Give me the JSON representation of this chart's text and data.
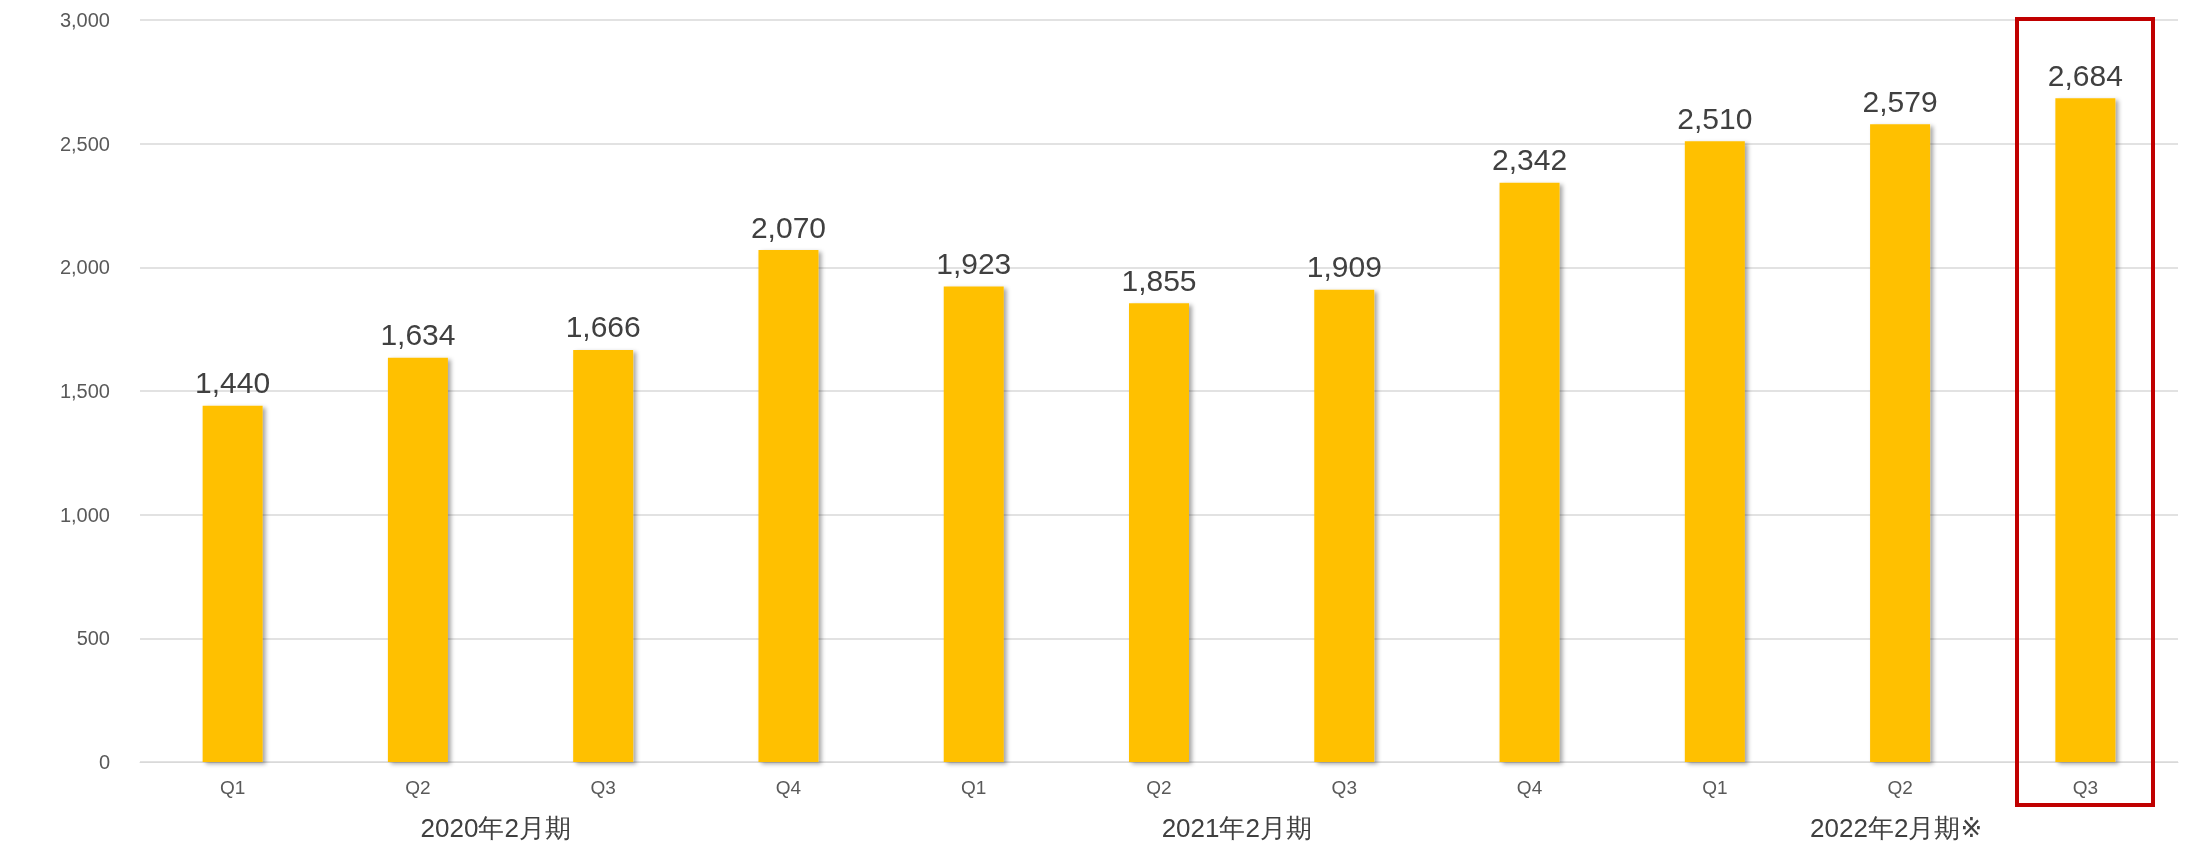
{
  "chart_data": {
    "type": "bar",
    "categories": [
      "Q1",
      "Q2",
      "Q3",
      "Q4",
      "Q1",
      "Q2",
      "Q3",
      "Q4",
      "Q1",
      "Q2",
      "Q3"
    ],
    "values": [
      1440,
      1634,
      1666,
      2070,
      1923,
      1855,
      1909,
      2342,
      2510,
      2579,
      2684
    ],
    "value_labels": [
      "1,440",
      "1,634",
      "1,666",
      "2,070",
      "1,923",
      "1,855",
      "1,909",
      "2,342",
      "2,510",
      "2,579",
      "2,684"
    ],
    "color": "#ffc000",
    "ylim": [
      0,
      3000
    ],
    "yticks": [
      0,
      500,
      {
        "value": 1000,
        "label": "1,000"
      },
      {
        "value": 1500,
        "label": "1,500"
      },
      {
        "value": 2000,
        "label": "2,000"
      },
      {
        "value": 2500,
        "label": "2,500"
      },
      {
        "value": 3000,
        "label": "3,000"
      }
    ],
    "grid": "y",
    "annotations": [
      "2020年2月期",
      "2021年2月期",
      "2022年2月期※"
    ]
  }
}
